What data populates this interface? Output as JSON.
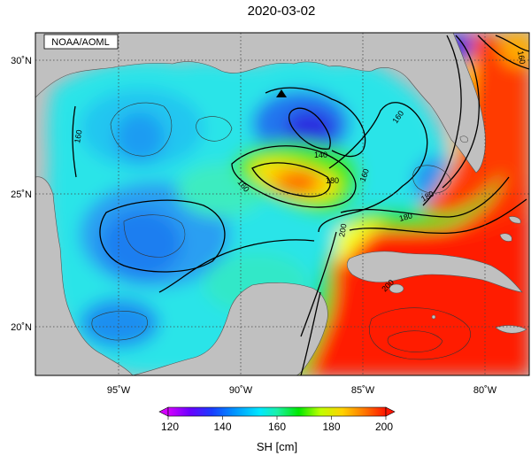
{
  "title": "2020-03-02",
  "credit": "NOAA/AOML",
  "colorbar": {
    "label": "SH [cm]",
    "min": 120,
    "max": 200,
    "ticks": [
      "120",
      "140",
      "160",
      "180",
      "200"
    ],
    "colors": [
      "#d400ff",
      "#6a00ff",
      "#1a3cff",
      "#0090ff",
      "#00e8ff",
      "#19f0a8",
      "#00e800",
      "#c0ff00",
      "#ffd200",
      "#ff7800",
      "#ff1500"
    ]
  },
  "axes": {
    "lon_labels": [
      "95˚W",
      "90˚W",
      "85˚W",
      "80˚W"
    ],
    "lat_labels": [
      "30˚N",
      "25˚N",
      "20˚N"
    ]
  },
  "contour_labels": [
    "160",
    "160",
    "140",
    "160",
    "180",
    "160",
    "180",
    "160",
    "200",
    "200",
    "180"
  ],
  "colors": {
    "land": "#c0c0c0",
    "coast": "#555555",
    "grid": "#666666",
    "marker": "#000000"
  }
}
